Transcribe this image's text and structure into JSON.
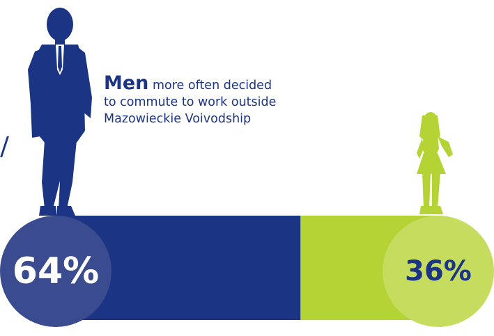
{
  "caption": {
    "emphasis": "Men",
    "line1_rest": "more often decided",
    "line2": "to commute to work outside",
    "line3": "Mazowieckie Voivodship"
  },
  "colors": {
    "men_bar": "#1b3484",
    "men_circle": "#3b4b8f",
    "women_bar": "#b4d334",
    "women_circle": "#c5dc5f",
    "text_white": "#ffffff",
    "text_navy": "#1b3484"
  },
  "icons": {
    "men": "man-silhouette-icon",
    "women": "woman-silhouette-icon"
  },
  "chart_data": {
    "type": "bar",
    "orientation": "horizontal-stacked",
    "categories": [
      "Men",
      "Women"
    ],
    "values": [
      64,
      36
    ],
    "labels": [
      "64%",
      "36%"
    ],
    "unit": "%"
  }
}
